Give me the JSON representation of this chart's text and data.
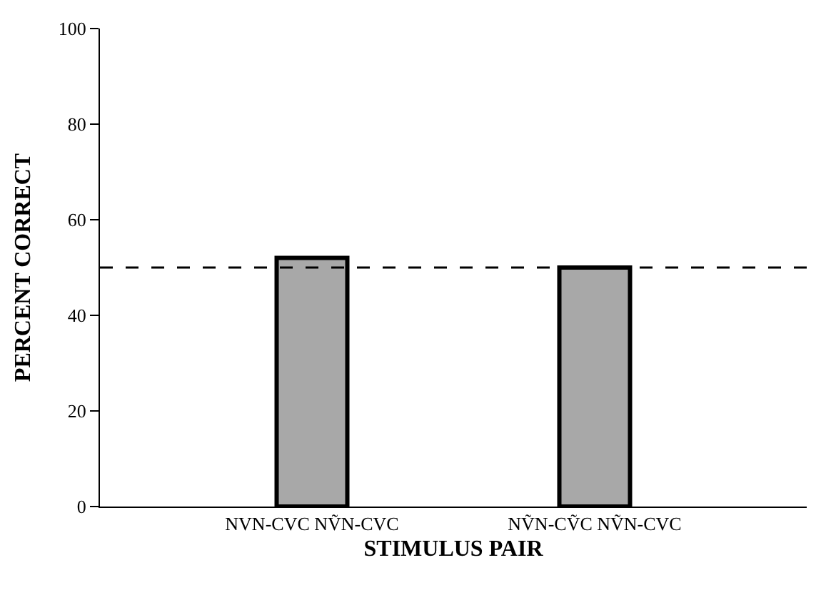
{
  "chart_data": {
    "type": "bar",
    "xlabel": "STIMULUS PAIR",
    "ylabel": "PERCENT CORRECT",
    "categories": [
      "NVN-CVC NṼN-CVC",
      "NṼN-CṼC NṼN-CVC"
    ],
    "values": [
      52,
      50
    ],
    "color": "#a8a8a8",
    "ylim": [
      0,
      100
    ],
    "yticks": [
      0,
      20,
      40,
      60,
      80,
      100
    ],
    "ref_lines": [
      {
        "axis": "y",
        "value": 50,
        "line_style": "dashed",
        "color": "#000000"
      }
    ]
  }
}
